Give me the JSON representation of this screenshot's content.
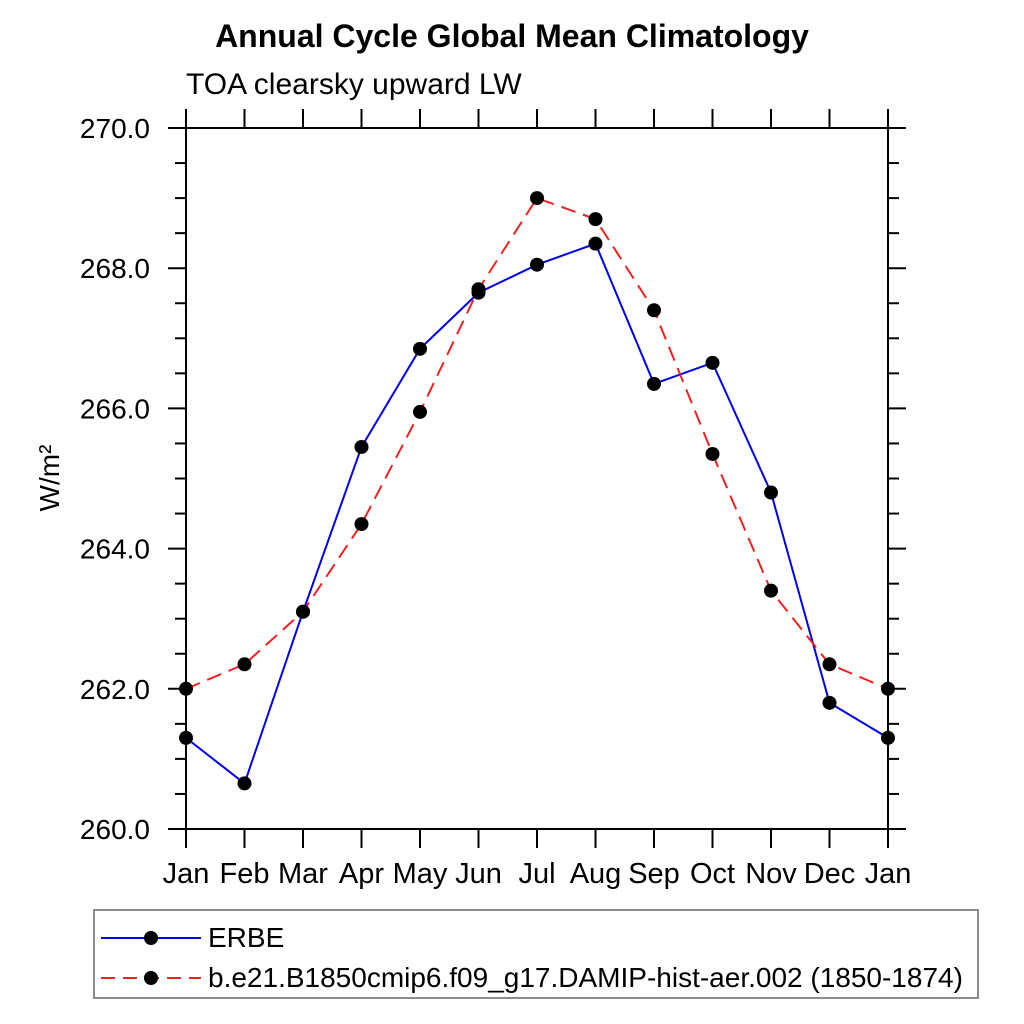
{
  "header": {
    "title": "Annual Cycle Global Mean Climatology",
    "subtitle": "TOA clearsky upward LW"
  },
  "chart_data": {
    "type": "line",
    "title": "Annual Cycle Global Mean Climatology",
    "subtitle": "TOA clearsky upward LW",
    "xlabel": "",
    "ylabel": "W/m²",
    "categories": [
      "Jan",
      "Feb",
      "Mar",
      "Apr",
      "May",
      "Jun",
      "Jul",
      "Aug",
      "Sep",
      "Oct",
      "Nov",
      "Dec",
      "Jan"
    ],
    "ylim": [
      260.0,
      270.0
    ],
    "ytick_interval": 2.0,
    "yminor_interval": 0.5,
    "ytick_labels": [
      "260.0",
      "262.0",
      "264.0",
      "266.0",
      "268.0",
      "270.0"
    ],
    "grid": false,
    "frame": "box-with-outward-ticks",
    "legend_position": "bottom-left-box",
    "marker_color": "#000000",
    "series": [
      {
        "name": "ERBE",
        "color": "#0000ee",
        "style": "solid",
        "marker": "filled-circle",
        "values": [
          261.3,
          260.65,
          263.1,
          265.45,
          266.85,
          267.65,
          268.05,
          268.35,
          266.35,
          266.65,
          264.8,
          261.8,
          261.3
        ]
      },
      {
        "name": "b.e21.B1850cmip6.f09_g17.DAMIP-hist-aer.002 (1850-1874)",
        "color": "#ee2222",
        "style": "dashed",
        "marker": "filled-circle",
        "values": [
          262.0,
          262.35,
          263.1,
          264.35,
          265.95,
          267.7,
          269.0,
          268.7,
          267.4,
          265.35,
          263.4,
          262.35,
          262.0
        ]
      }
    ]
  }
}
